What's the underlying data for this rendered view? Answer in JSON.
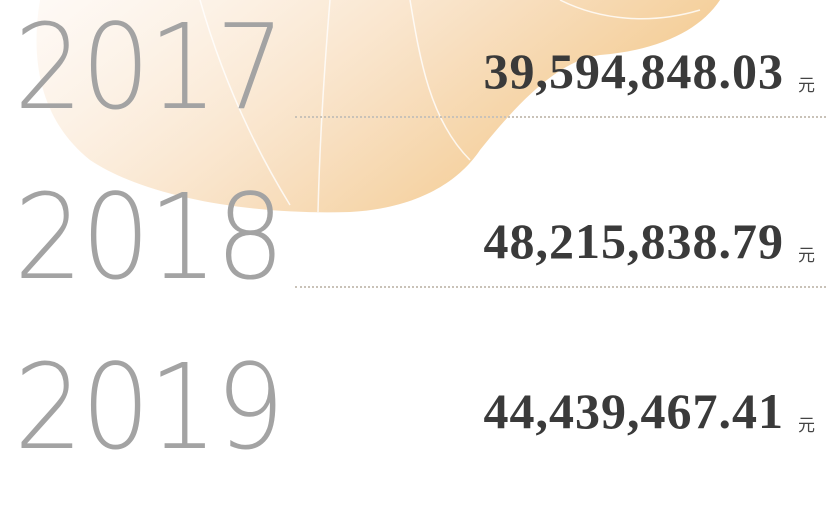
{
  "rows": [
    {
      "year": "2017",
      "amount": "39,594,848.03",
      "unit": "元"
    },
    {
      "year": "2018",
      "amount": "48,215,838.79",
      "unit": "元"
    },
    {
      "year": "2019",
      "amount": "44,439,467.41",
      "unit": "元"
    }
  ]
}
